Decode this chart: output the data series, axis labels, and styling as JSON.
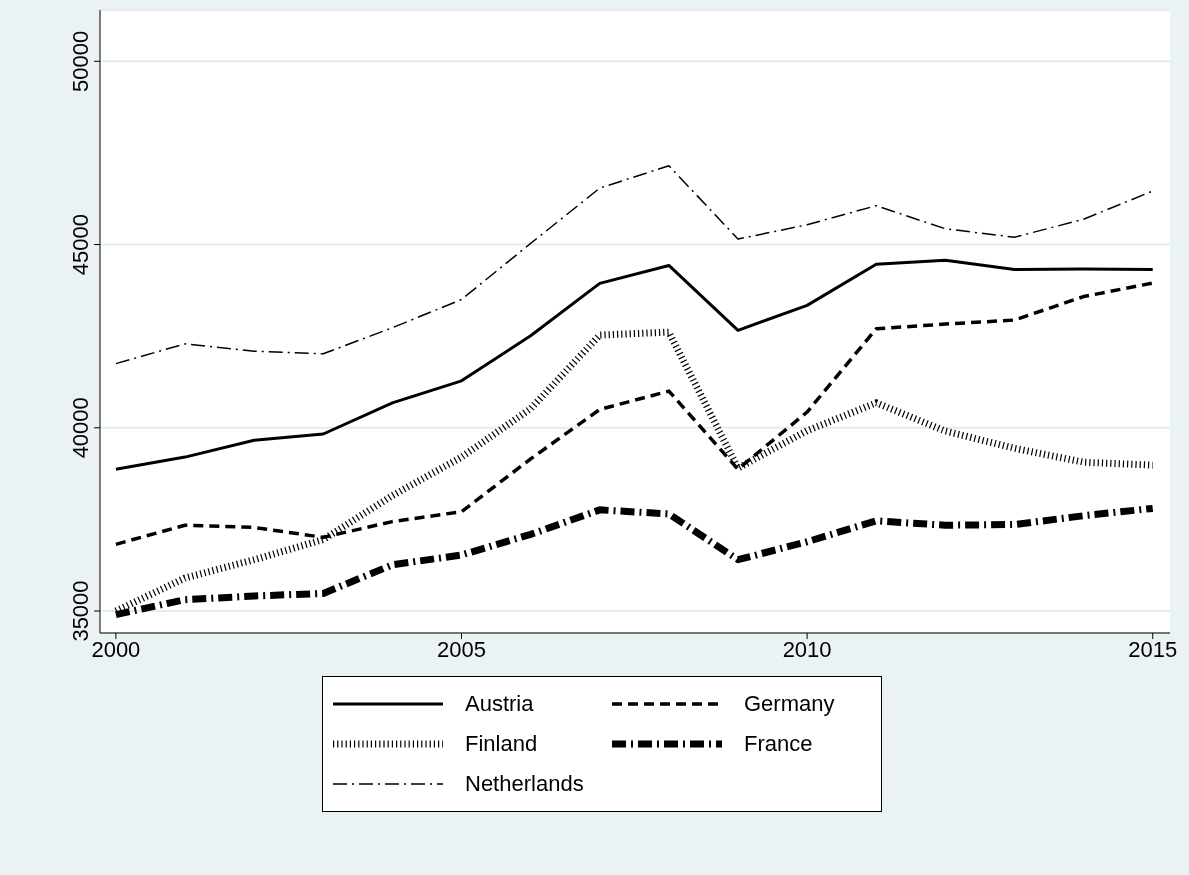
{
  "chart_data": {
    "type": "line",
    "x": [
      2000,
      2001,
      2002,
      2003,
      2004,
      2005,
      2006,
      2007,
      2008,
      2009,
      2010,
      2011,
      2012,
      2013,
      2014,
      2015
    ],
    "series": [
      {
        "name": "Austria",
        "color": "#000000",
        "line_style": "solid",
        "values": [
          38870,
          39200,
          39660,
          39830,
          40680,
          41280,
          42510,
          43940,
          44430,
          42660,
          43340,
          44460,
          44570,
          44320,
          44330,
          44320
        ]
      },
      {
        "name": "Germany",
        "color": "#000000",
        "line_style": "dashed",
        "values": [
          36820,
          37340,
          37280,
          37010,
          37440,
          37710,
          39150,
          40500,
          41000,
          38870,
          40430,
          42700,
          42830,
          42940,
          43580,
          43950
        ]
      },
      {
        "name": "Finland",
        "color": "#000000",
        "line_style": "dotted",
        "values": [
          35000,
          35900,
          36400,
          36950,
          38150,
          39200,
          40520,
          42530,
          42610,
          38900,
          39920,
          40680,
          39910,
          39440,
          39060,
          38980
        ]
      },
      {
        "name": "France",
        "color": "#000000",
        "line_style": "dashdot-heavy",
        "values": [
          34900,
          35310,
          35410,
          35480,
          36260,
          36530,
          37090,
          37760,
          37650,
          36400,
          36890,
          37460,
          37340,
          37360,
          37600,
          37800
        ]
      },
      {
        "name": "Netherlands",
        "color": "#000000",
        "line_style": "dashdot",
        "values": [
          41750,
          42290,
          42090,
          42020,
          42730,
          43500,
          45030,
          46540,
          47150,
          45150,
          45540,
          46060,
          45430,
          45200,
          45690,
          46460
        ]
      }
    ],
    "xlim": [
      1999.77,
      2015.25
    ],
    "xticks": [
      2000,
      2005,
      2010,
      2015
    ],
    "ylim": [
      34400,
      51400
    ],
    "yticks": [
      35000,
      40000,
      45000,
      50000
    ],
    "grid": "y",
    "legend": "bottom",
    "marker": "none"
  }
}
